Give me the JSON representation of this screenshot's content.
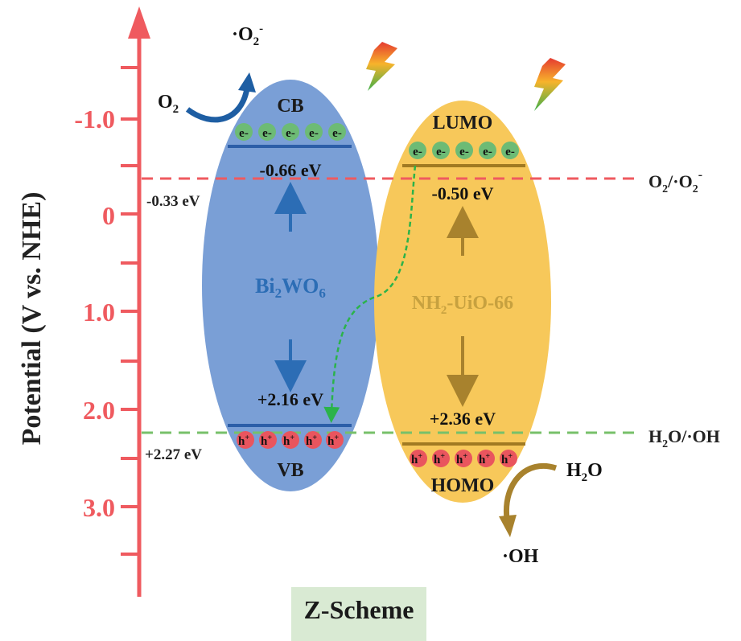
{
  "axis": {
    "label": "Potential (V vs. NHE)",
    "ticks": [
      "-1.0",
      "0",
      "1.0",
      "2.0",
      "3.0"
    ]
  },
  "bi2wo6": {
    "name_main": "Bi",
    "name_sub1": "2",
    "name_mid": "WO",
    "name_sub2": "6",
    "cb_label": "CB",
    "vb_label": "VB",
    "cb_potential": "-0.66 eV",
    "vb_potential": "+2.16 eV",
    "color": "#7a9fd6"
  },
  "nh2_uio66": {
    "name_pre": "NH",
    "name_sub": "2",
    "name_post": "-UiO-66",
    "lumo_label": "LUMO",
    "homo_label": "HOMO",
    "lumo_potential": "-0.50 eV",
    "homo_potential": "+2.36 eV",
    "color": "#f7c85a"
  },
  "carriers": {
    "electron": "e-",
    "hole_main": "h",
    "hole_sup": "+"
  },
  "redox": {
    "o2_couple_pre": "O",
    "o2_couple_sub": "2",
    "o2_couple_mid": "/·O",
    "o2_couple_sub2": "2",
    "o2_couple_sup": "-",
    "o2_potential": "-0.33 eV",
    "h2o_couple_pre": "H",
    "h2o_couple_sub": "2",
    "h2o_couple_post": "O/·OH",
    "h2o_potential": "+2.27 eV"
  },
  "reactions": {
    "o2_reactant_main": "O",
    "o2_reactant_sub": "2",
    "superoxide_main": "·O",
    "superoxide_sub": "2",
    "superoxide_sup": "-",
    "water_main": "H",
    "water_sub": "2",
    "water_post": "O",
    "hydroxyl": "·OH"
  },
  "caption": "Z-Scheme",
  "colors": {
    "axis": "#ef5a5f",
    "o2_line": "#ef5a5f",
    "h2o_line": "#77c06a",
    "electron_fill": "#6dbb75",
    "hole_fill": "#e9555e",
    "bi_band": "#2c5ea8",
    "mof_band": "#a17a22",
    "transfer_path": "#2bb34a"
  }
}
